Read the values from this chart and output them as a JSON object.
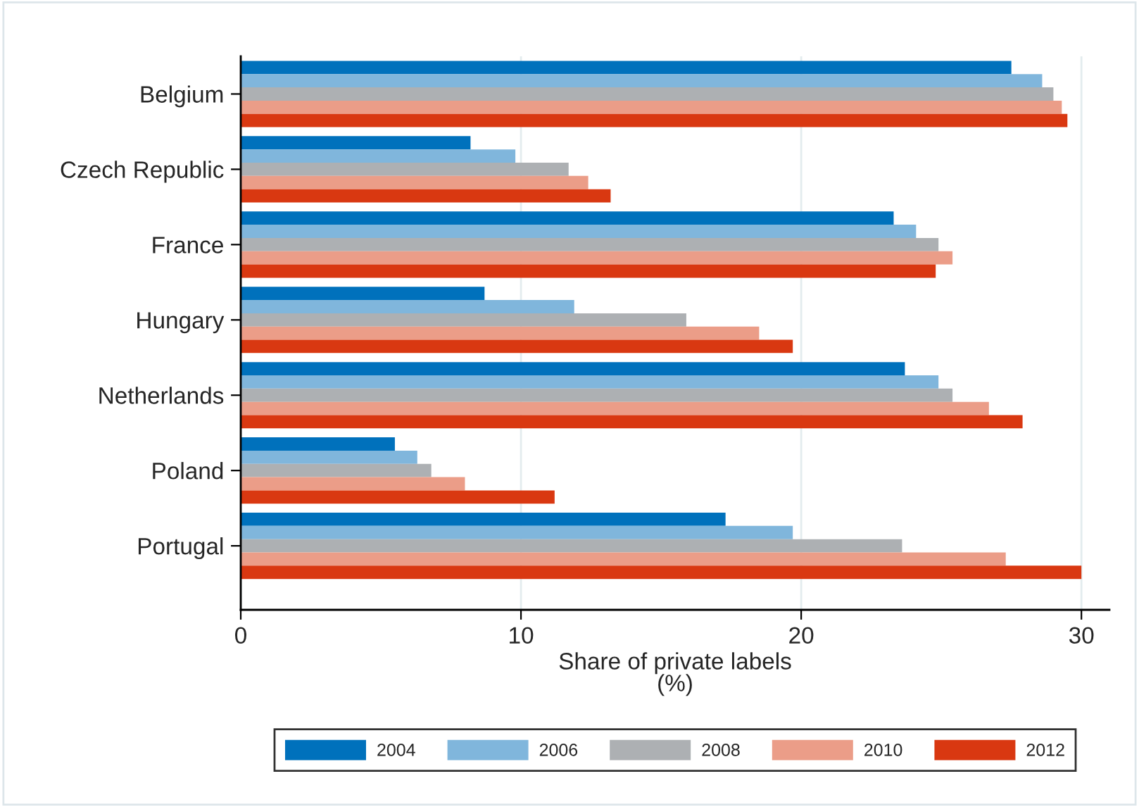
{
  "chart_data": {
    "type": "bar",
    "orientation": "horizontal",
    "xlabel": "Share of private labels\n(%)",
    "categories": [
      "Belgium",
      "Czech Republic",
      "France",
      "Hungary",
      "Netherlands",
      "Poland",
      "Portugal"
    ],
    "series": [
      {
        "name": "2004",
        "color": "#0071bc",
        "values": [
          27.5,
          8.2,
          23.3,
          8.7,
          23.7,
          5.5,
          17.3
        ]
      },
      {
        "name": "2006",
        "color": "#80b6dc",
        "values": [
          28.6,
          9.8,
          24.1,
          11.9,
          24.9,
          6.3,
          19.7
        ]
      },
      {
        "name": "2008",
        "color": "#adb0b3",
        "values": [
          29.0,
          11.7,
          24.9,
          15.9,
          25.4,
          6.8,
          23.6
        ]
      },
      {
        "name": "2010",
        "color": "#eb9d88",
        "values": [
          29.3,
          12.4,
          25.4,
          18.5,
          26.7,
          8.0,
          27.3
        ]
      },
      {
        "name": "2012",
        "color": "#d93811",
        "values": [
          29.5,
          13.2,
          24.8,
          19.7,
          27.9,
          11.2,
          30.0
        ]
      }
    ],
    "xlim": [
      0,
      31
    ],
    "xticks": [
      0,
      10,
      20,
      30
    ],
    "grid": "x",
    "legend": "bottom"
  }
}
